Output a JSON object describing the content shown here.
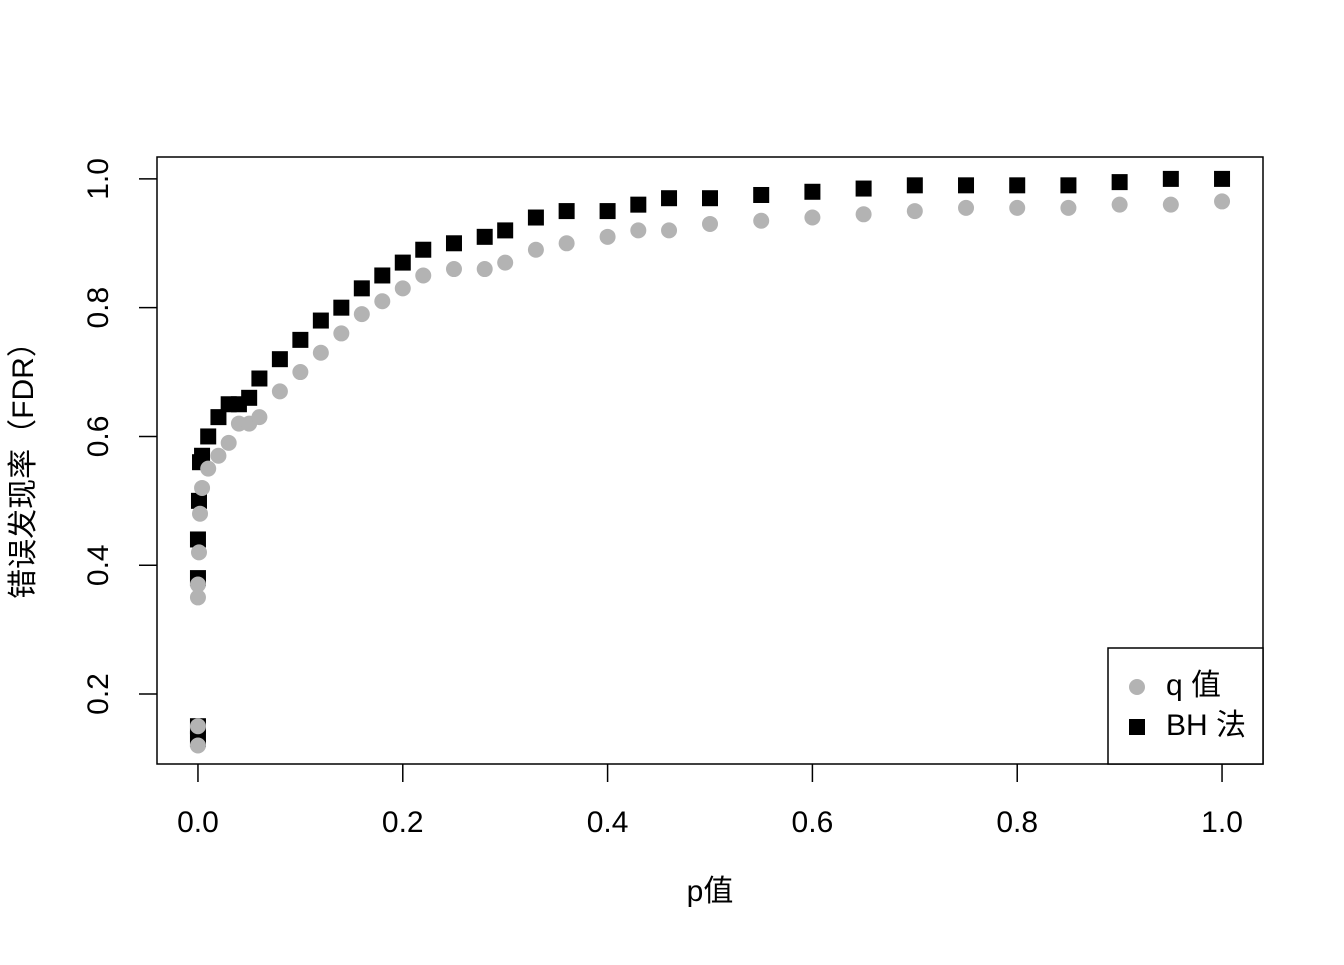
{
  "chart_data": {
    "type": "scatter",
    "x_label": "p值",
    "y_label": "错误发现率（FDR）",
    "x": [
      0,
      0,
      0,
      0,
      0.001,
      0.002,
      0.004,
      0.01,
      0.02,
      0.03,
      0.04,
      0.05,
      0.06,
      0.08,
      0.1,
      0.12,
      0.14,
      0.16,
      0.18,
      0.2,
      0.22,
      0.25,
      0.28,
      0.3,
      0.33,
      0.36,
      0.4,
      0.43,
      0.46,
      0.5,
      0.55,
      0.6,
      0.65,
      0.7,
      0.75,
      0.8,
      0.85,
      0.9,
      0.95,
      1.0
    ],
    "series": [
      {
        "name": "q 值",
        "color": "#b3b3b3",
        "marker": "circle",
        "values": [
          0.12,
          0.15,
          0.35,
          0.37,
          0.42,
          0.48,
          0.52,
          0.55,
          0.57,
          0.59,
          0.62,
          0.62,
          0.63,
          0.67,
          0.7,
          0.73,
          0.76,
          0.79,
          0.81,
          0.83,
          0.85,
          0.86,
          0.86,
          0.87,
          0.89,
          0.9,
          0.91,
          0.92,
          0.92,
          0.93,
          0.935,
          0.94,
          0.945,
          0.95,
          0.955,
          0.955,
          0.955,
          0.96,
          0.96,
          0.965
        ]
      },
      {
        "name": "BH 法",
        "color": "#000000",
        "marker": "square",
        "values": [
          0.13,
          0.15,
          0.38,
          0.44,
          0.5,
          0.56,
          0.57,
          0.6,
          0.63,
          0.65,
          0.65,
          0.66,
          0.69,
          0.72,
          0.75,
          0.78,
          0.8,
          0.83,
          0.85,
          0.87,
          0.89,
          0.9,
          0.91,
          0.92,
          0.94,
          0.95,
          0.95,
          0.96,
          0.97,
          0.97,
          0.975,
          0.98,
          0.985,
          0.99,
          0.99,
          0.99,
          0.99,
          0.995,
          1.0,
          1.0
        ]
      }
    ],
    "xlim": [
      -0.04,
      1.04
    ],
    "ylim": [
      0.0913,
      1.034
    ],
    "xticks": [
      {
        "value": 0,
        "label": "0.0"
      },
      0.2,
      0.4,
      0.6,
      0.8,
      {
        "value": 1,
        "label": "1.0"
      }
    ],
    "yticks": [
      0.2,
      0.4,
      0.6,
      0.8,
      {
        "value": 1,
        "label": "1.0"
      }
    ],
    "legend": "bottom-right"
  }
}
